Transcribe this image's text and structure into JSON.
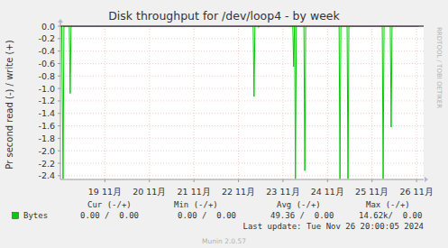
{
  "chart_data": {
    "type": "line",
    "title": "Disk throughput for /dev/loop4 - by week",
    "y_label": "Pr second read (-) / write (+)",
    "x": [
      18.0,
      18.03,
      18.06,
      18.08,
      18.2,
      18.22,
      18.24,
      22.33,
      22.35,
      22.37,
      22.43,
      22.45,
      22.47,
      23.22,
      23.24,
      23.26,
      23.28,
      23.3,
      23.47,
      23.49,
      23.51,
      24.26,
      24.28,
      24.3,
      24.44,
      24.46,
      24.48,
      25.23,
      25.25,
      25.27,
      25.41,
      25.43,
      25.45,
      26.05
    ],
    "series": [
      {
        "name": "Bytes",
        "color": "#00cc00",
        "values": [
          0,
          0,
          -2.45,
          0,
          0,
          -1.08,
          0,
          0,
          -1.13,
          0,
          0,
          -0.02,
          0,
          0,
          -0.65,
          0,
          -2.45,
          0,
          0,
          -2.32,
          0,
          0,
          -2.45,
          0,
          0,
          -2.45,
          0,
          0,
          -2.45,
          0,
          0,
          -1.62,
          0,
          0
        ]
      }
    ],
    "xlim": [
      18.0,
      26.16
    ],
    "xticks": [
      {
        "value": 19,
        "label": "19 11月"
      },
      {
        "value": 20,
        "label": "20 11月"
      },
      {
        "value": 21,
        "label": "21 11月"
      },
      {
        "value": 22,
        "label": "22 11月"
      },
      {
        "value": 23,
        "label": "23 11月"
      },
      {
        "value": 24,
        "label": "24 11月"
      },
      {
        "value": 25,
        "label": "25 11月"
      },
      {
        "value": 26,
        "label": "26 11月"
      }
    ],
    "ylim": [
      -2.46,
      0.0
    ],
    "yticks": [
      {
        "value": 0,
        "label": "0.0"
      },
      -0.2,
      -0.4,
      -0.6,
      -0.8,
      {
        "value": -1,
        "label": "-1.0"
      },
      -1.2,
      -1.4,
      -1.6,
      -1.8,
      {
        "value": -2,
        "label": "-2.0"
      },
      -2.2,
      -2.4
    ],
    "grid": true,
    "stats_headers": [
      "Cur (-/+)",
      "Min (-/+)",
      "Avg (-/+)",
      "Max (-/+)"
    ],
    "stats": [
      "0.00 /  0.00",
      "0.00 /  0.00",
      "49.36 /  0.00",
      "14.62k/  0.00"
    ],
    "last_update": "Last update: Tue Nov 26 20:00:05 2024",
    "footer": "Munin 2.0.57",
    "watermark": "RRDTOOL / TOBI OETIKER"
  }
}
